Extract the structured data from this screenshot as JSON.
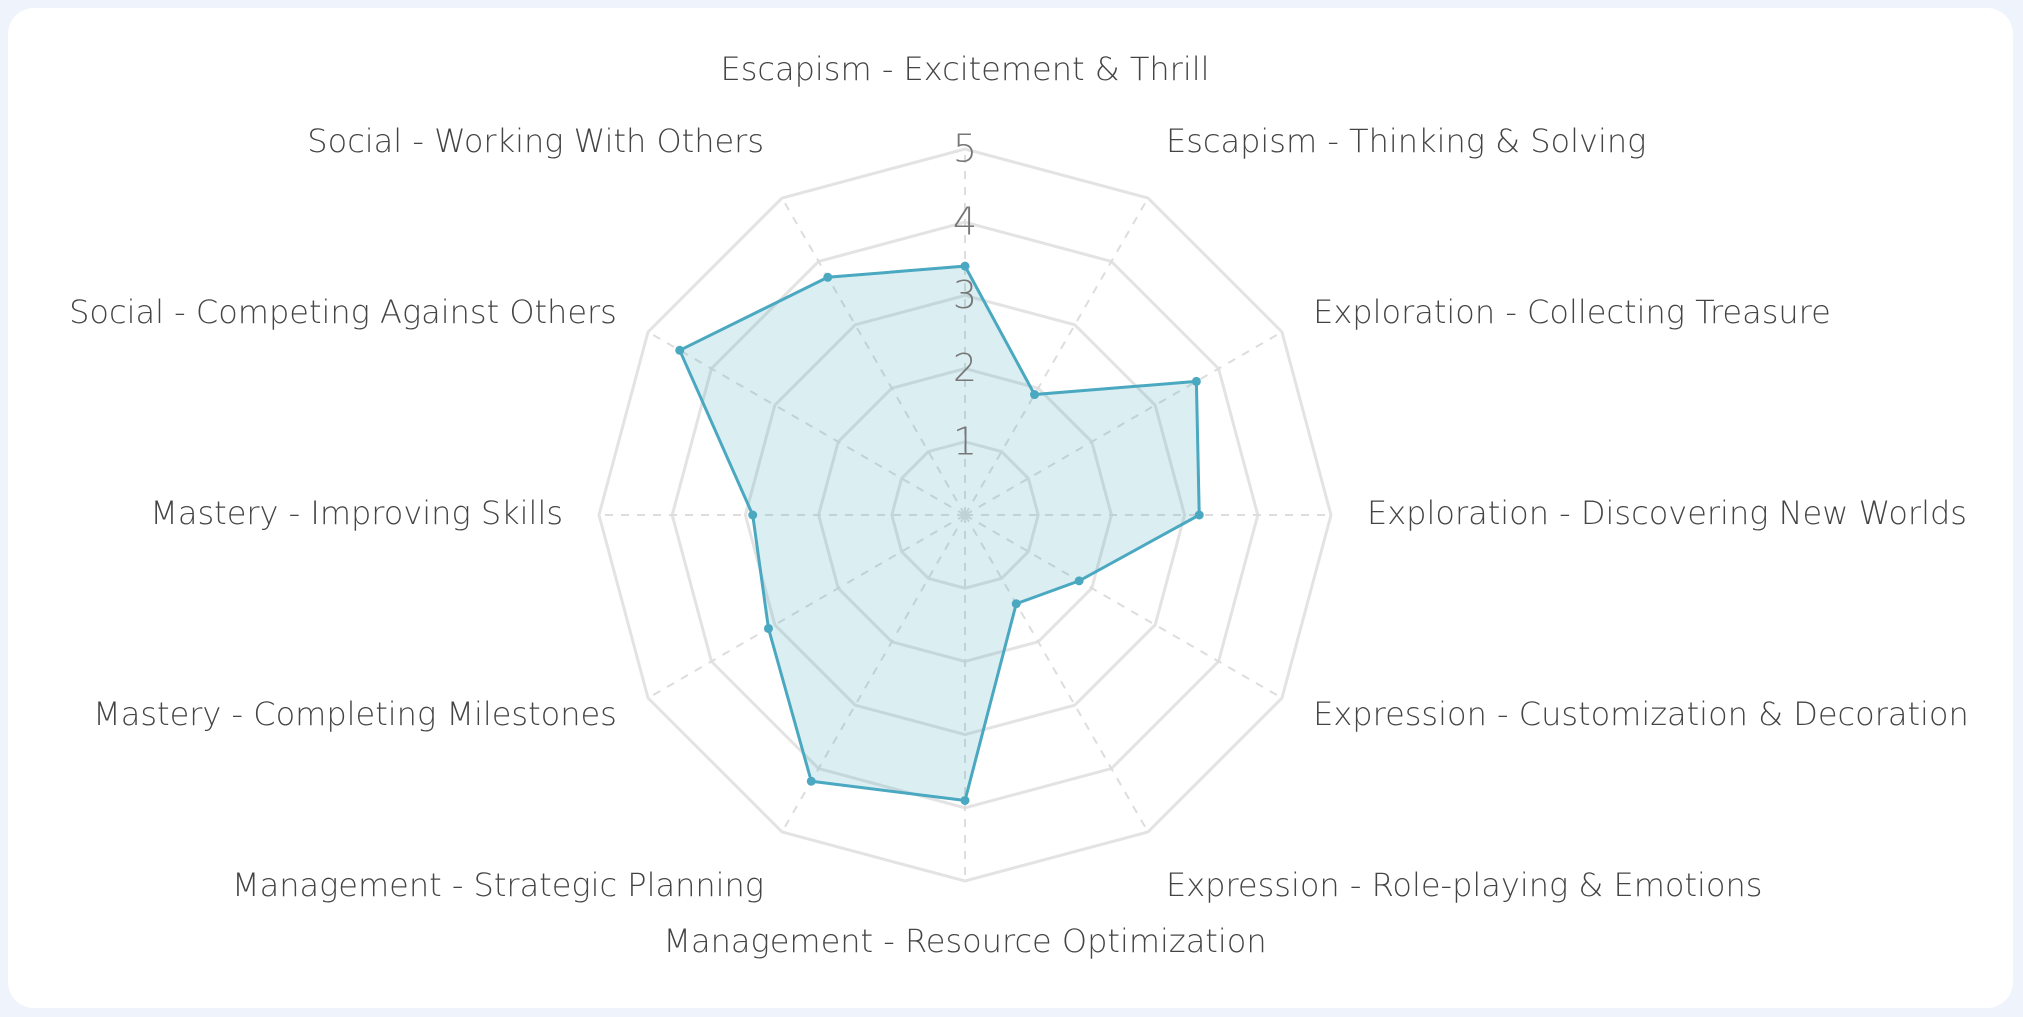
{
  "chart_data": {
    "type": "radar",
    "categories": [
      "Escapism - Excitement & Thrill",
      "Escapism - Thinking & Solving",
      "Exploration - Collecting Treasure",
      "Exploration - Discovering New Worlds",
      "Expression - Customization & Decoration",
      "Expression - Role-playing & Emotions",
      "Management - Resource Optimization",
      "Management - Strategic Planning",
      "Mastery - Completing Milestones",
      "Mastery - Improving Skills",
      "Social - Competing Against Others",
      "Social - Working With Others"
    ],
    "series": [
      {
        "color": "#4aa8c0",
        "values": [
          3.4,
          1.9,
          3.65,
          3.2,
          1.8,
          1.4,
          3.9,
          4.2,
          3.1,
          2.9,
          4.5,
          3.75
        ]
      }
    ],
    "rlim": [
      0,
      5
    ],
    "rticks": [
      1,
      2,
      3,
      4,
      5
    ],
    "grid": true
  }
}
